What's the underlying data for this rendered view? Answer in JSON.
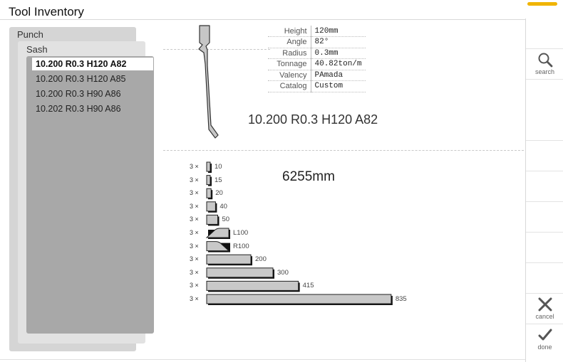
{
  "window": {
    "title": "Tool Inventory",
    "accent_color": "#f0b400"
  },
  "categories": {
    "level1": "Punch",
    "level2": "Sash"
  },
  "tool_list": [
    {
      "name": "10.200 R0.3 H120 A82",
      "selected": true
    },
    {
      "name": "10.200 R0.3 H120 A85",
      "selected": false
    },
    {
      "name": "10.200 R0.3 H90 A86",
      "selected": false
    },
    {
      "name": "10.202 R0.3 H90 A86",
      "selected": false
    }
  ],
  "properties": [
    {
      "key": "Height",
      "value": "120mm"
    },
    {
      "key": "Angle",
      "value": "82°"
    },
    {
      "key": "Radius",
      "value": "0.3mm"
    },
    {
      "key": "Tonnage",
      "value": "40.82ton/m"
    },
    {
      "key": "Valency",
      "value": "PAmada"
    },
    {
      "key": "Catalog",
      "value": "Custom"
    }
  ],
  "tool_name": "10.200 R0.3 H120 A82",
  "total_length": "6255mm",
  "segments": [
    {
      "qty": "3 ×",
      "label": "10",
      "length": 10,
      "shape": "rect"
    },
    {
      "qty": "3 ×",
      "label": "15",
      "length": 15,
      "shape": "rect"
    },
    {
      "qty": "3 ×",
      "label": "20",
      "length": 20,
      "shape": "rect"
    },
    {
      "qty": "3 ×",
      "label": "40",
      "length": 40,
      "shape": "rect"
    },
    {
      "qty": "3 ×",
      "label": "50",
      "length": 50,
      "shape": "rect"
    },
    {
      "qty": "3 ×",
      "label": "L100",
      "length": 100,
      "shape": "horn-left"
    },
    {
      "qty": "3 ×",
      "label": "R100",
      "length": 100,
      "shape": "horn-right"
    },
    {
      "qty": "3 ×",
      "label": "200",
      "length": 200,
      "shape": "rect"
    },
    {
      "qty": "3 ×",
      "label": "300",
      "length": 300,
      "shape": "rect"
    },
    {
      "qty": "3 ×",
      "label": "415",
      "length": 415,
      "shape": "rect"
    },
    {
      "qty": "3 ×",
      "label": "835",
      "length": 835,
      "shape": "rect"
    }
  ],
  "sidebar": {
    "search": {
      "label": "search",
      "icon": "magnifier-icon"
    },
    "cancel": {
      "label": "cancel",
      "icon": "x-icon"
    },
    "done": {
      "label": "done",
      "icon": "check-icon"
    }
  }
}
